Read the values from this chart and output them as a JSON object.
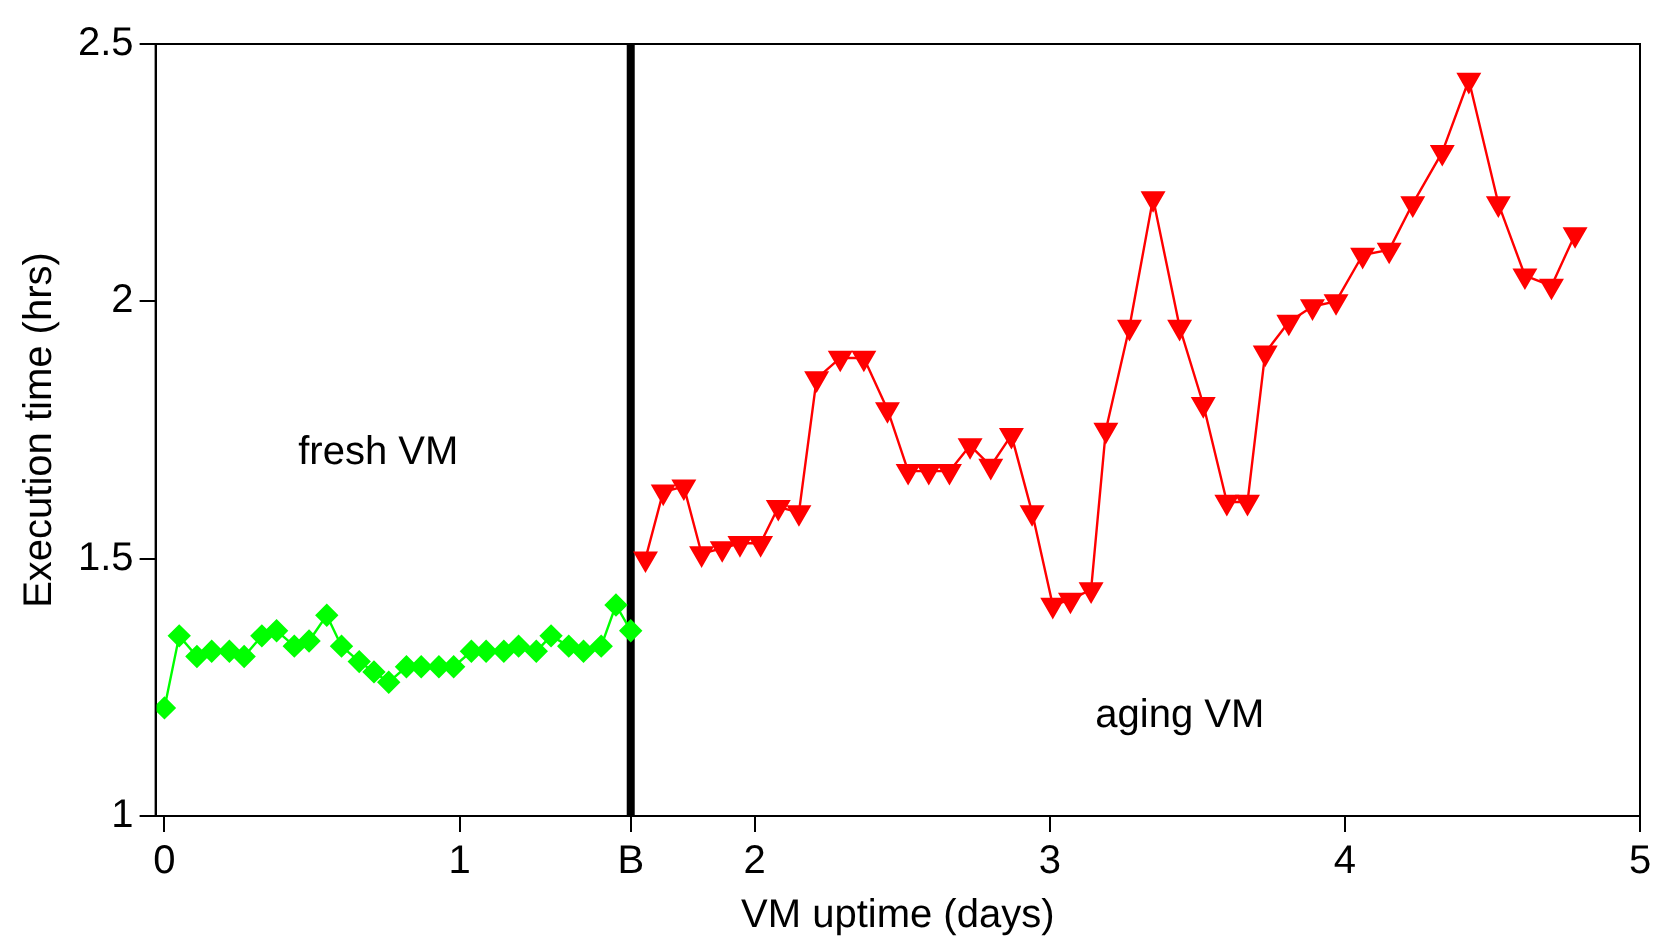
{
  "chart_data": {
    "type": "line",
    "xlabel": "VM uptime (days)",
    "ylabel": "Execution time (hrs)",
    "xlim": [
      -0.03,
      5
    ],
    "ylim": [
      1,
      2.5
    ],
    "xticks": [
      0,
      1,
      {
        "value": 1.58,
        "label": "B"
      },
      2,
      3,
      4,
      5
    ],
    "yticks": [
      1,
      1.5,
      2,
      2.5
    ],
    "grid": false,
    "legend": false,
    "annotations": [
      "fresh VM",
      "aging VM"
    ],
    "ref_lines": [
      {
        "axis": "x",
        "value": 1.58,
        "color": "#000000"
      }
    ],
    "series": [
      {
        "color": "#00ff00",
        "marker": "diamond",
        "x": [
          0,
          0.05,
          0.11,
          0.16,
          0.22,
          0.27,
          0.33,
          0.38,
          0.44,
          0.49,
          0.55,
          0.6,
          0.66,
          0.71,
          0.76,
          0.82,
          0.87,
          0.93,
          0.98,
          1.04,
          1.09,
          1.15,
          1.2,
          1.26,
          1.31,
          1.37,
          1.42,
          1.48,
          1.53,
          1.58
        ],
        "values": [
          1.21,
          1.35,
          1.31,
          1.32,
          1.32,
          1.31,
          1.35,
          1.36,
          1.33,
          1.34,
          1.39,
          1.33,
          1.3,
          1.28,
          1.26,
          1.29,
          1.29,
          1.29,
          1.29,
          1.32,
          1.32,
          1.32,
          1.33,
          1.32,
          1.35,
          1.33,
          1.32,
          1.33,
          1.41,
          1.36
        ]
      },
      {
        "color": "#ff0000",
        "marker": "triangle",
        "x": [
          1.63,
          1.69,
          1.76,
          1.82,
          1.89,
          1.95,
          2.02,
          2.08,
          2.15,
          2.21,
          2.29,
          2.37,
          2.45,
          2.52,
          2.59,
          2.66,
          2.73,
          2.8,
          2.87,
          2.94,
          3.01,
          3.07,
          3.14,
          3.19,
          3.27,
          3.35,
          3.44,
          3.52,
          3.6,
          3.67,
          3.73,
          3.81,
          3.89,
          3.97,
          4.06,
          4.15,
          4.23,
          4.33,
          4.42,
          4.52,
          4.61,
          4.7,
          4.78
        ],
        "values": [
          1.5,
          1.63,
          1.64,
          1.51,
          1.52,
          1.53,
          1.53,
          1.6,
          1.59,
          1.85,
          1.89,
          1.89,
          1.79,
          1.67,
          1.67,
          1.67,
          1.72,
          1.68,
          1.74,
          1.59,
          1.41,
          1.42,
          1.44,
          1.75,
          1.95,
          2.2,
          1.95,
          1.8,
          1.61,
          1.61,
          1.9,
          1.96,
          1.99,
          2.0,
          2.09,
          2.1,
          2.19,
          2.29,
          2.43,
          2.19,
          2.05,
          2.03,
          2.13
        ]
      }
    ]
  }
}
